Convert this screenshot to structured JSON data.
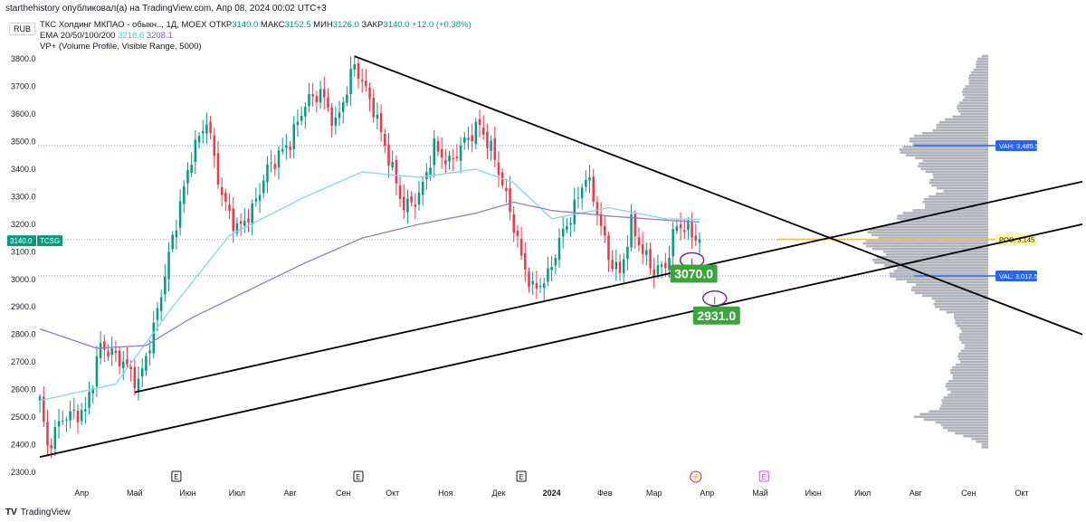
{
  "header": {
    "published_by": "starthehistory опубликовал(а) на TradingView.com, Апр 08, 2024 00:02 UTC+3",
    "currency": "RUB",
    "symbol_line": "ТКС Холдинг МКПАО - обыкн.., 1Д, MOEX",
    "otkr_label": "ОТКР",
    "otkr": "3140.0",
    "maks_label": "МАКС",
    "maks": "3152.5",
    "min_label": "МИН",
    "min": "3126.0",
    "zakr_label": "ЗАКР",
    "zakr": "3140.0",
    "change": "+12.0 (+0.38%)",
    "ema_label": "EMA 20/50/100/200",
    "ema_val1": "3218.6",
    "ema_val2": "3208.1",
    "vp_label": "VP+ (Volume Profile, Visible Range, 5000)"
  },
  "footer": {
    "brand": "TradingView",
    "logo_text": "TV"
  },
  "colors": {
    "up": "#089981",
    "down": "#f23645",
    "ema_fast": "#7fd6f5",
    "ema_slow": "#8e7cc3",
    "vp": "#9598a1",
    "vah": "#2962ff",
    "poc": "#f5d33d",
    "green_label": "#3da33d",
    "ellipse": "#7b2d8e"
  },
  "chart_data": {
    "type": "candlestick",
    "title": "ТКС Холдинг МКПАО - обыкн.., 1Д, MOEX",
    "ylim": [
      2280,
      3850
    ],
    "y_ticks": [
      "2300.0",
      "2400.0",
      "2500.0",
      "2600.0",
      "2700.0",
      "2800.0",
      "2900.0",
      "3000.0",
      "3100.0",
      "3200.0",
      "3300.0",
      "3400.0",
      "3500.0",
      "3600.0",
      "3700.0",
      "3800.0"
    ],
    "x_ticks": [
      "Апр",
      "Май",
      "Июн",
      "Июл",
      "Авг",
      "Сен",
      "Окт",
      "Ноя",
      "Дек",
      "2024",
      "Фев",
      "Мар",
      "Апр",
      "Май",
      "Июн",
      "Июл",
      "Авг",
      "Сен",
      "Окт"
    ],
    "x_tick_index": [
      11,
      25,
      39,
      52,
      66,
      80,
      93,
      107,
      121,
      135,
      149,
      162,
      176,
      190,
      204,
      217,
      231,
      245,
      259
    ],
    "event_markers": [
      {
        "label": "E",
        "index": 36
      },
      {
        "label": "E",
        "index": 84
      },
      {
        "label": "E",
        "index": 127
      },
      {
        "label": "⚡",
        "index": 173
      },
      {
        "label": "E",
        "index": 191
      }
    ],
    "price_tags": [
      {
        "label": "3140.0",
        "value": 3140,
        "side": "left"
      },
      {
        "label": "TCSG",
        "value": 3140,
        "side": "left"
      }
    ],
    "vp_labels": [
      {
        "label": "VAH: 3,485.5",
        "value": 3485.5
      },
      {
        "label": "POC: 3,145",
        "value": 3145
      },
      {
        "label": "VAL: 3,012.5",
        "value": 3012.5
      }
    ],
    "annotations": [
      {
        "label": "3070.0",
        "value": 3070,
        "index": 172
      },
      {
        "label": "2931.0",
        "value": 2931,
        "index": 178
      }
    ],
    "trendlines": [
      {
        "name": "upper-resistance",
        "from": {
          "index": 83,
          "value": 3810
        },
        "to": {
          "index": 275,
          "value": 2800
        }
      },
      {
        "name": "upper-support",
        "from": {
          "index": 25,
          "value": 2590
        },
        "to": {
          "index": 275,
          "value": 3355
        }
      },
      {
        "name": "lower-support",
        "from": {
          "index": 0,
          "value": 2355
        },
        "to": {
          "index": 275,
          "value": 3200
        }
      }
    ],
    "key_levels": [
      {
        "index": 0,
        "value": 2560
      },
      {
        "index": 2,
        "value": 2390
      },
      {
        "index": 6,
        "value": 2500
      },
      {
        "index": 12,
        "value": 2520
      },
      {
        "index": 16,
        "value": 2760
      },
      {
        "index": 22,
        "value": 2700
      },
      {
        "index": 26,
        "value": 2620
      },
      {
        "index": 30,
        "value": 2820
      },
      {
        "index": 35,
        "value": 3150
      },
      {
        "index": 40,
        "value": 3450
      },
      {
        "index": 44,
        "value": 3580
      },
      {
        "index": 48,
        "value": 3300
      },
      {
        "index": 52,
        "value": 3180
      },
      {
        "index": 56,
        "value": 3250
      },
      {
        "index": 60,
        "value": 3400
      },
      {
        "index": 66,
        "value": 3500
      },
      {
        "index": 70,
        "value": 3640
      },
      {
        "index": 74,
        "value": 3680
      },
      {
        "index": 78,
        "value": 3560
      },
      {
        "index": 83,
        "value": 3780
      },
      {
        "index": 88,
        "value": 3620
      },
      {
        "index": 92,
        "value": 3440
      },
      {
        "index": 96,
        "value": 3260
      },
      {
        "index": 100,
        "value": 3300
      },
      {
        "index": 104,
        "value": 3480
      },
      {
        "index": 108,
        "value": 3420
      },
      {
        "index": 112,
        "value": 3500
      },
      {
        "index": 116,
        "value": 3560
      },
      {
        "index": 120,
        "value": 3440
      },
      {
        "index": 124,
        "value": 3250
      },
      {
        "index": 127,
        "value": 3080
      },
      {
        "index": 130,
        "value": 2960
      },
      {
        "index": 134,
        "value": 3010
      },
      {
        "index": 137,
        "value": 3140
      },
      {
        "index": 141,
        "value": 3260
      },
      {
        "index": 144,
        "value": 3380
      },
      {
        "index": 147,
        "value": 3250
      },
      {
        "index": 150,
        "value": 3080
      },
      {
        "index": 153,
        "value": 3020
      },
      {
        "index": 156,
        "value": 3200
      },
      {
        "index": 159,
        "value": 3100
      },
      {
        "index": 162,
        "value": 3030
      },
      {
        "index": 165,
        "value": 3050
      },
      {
        "index": 168,
        "value": 3200
      },
      {
        "index": 171,
        "value": 3180
      },
      {
        "index": 174,
        "value": 3140
      }
    ],
    "ema_fast_key": [
      {
        "index": 0,
        "value": 2560
      },
      {
        "index": 20,
        "value": 2620
      },
      {
        "index": 35,
        "value": 2900
      },
      {
        "index": 50,
        "value": 3160
      },
      {
        "index": 70,
        "value": 3300
      },
      {
        "index": 85,
        "value": 3390
      },
      {
        "index": 100,
        "value": 3370
      },
      {
        "index": 115,
        "value": 3400
      },
      {
        "index": 125,
        "value": 3350
      },
      {
        "index": 135,
        "value": 3220
      },
      {
        "index": 150,
        "value": 3260
      },
      {
        "index": 165,
        "value": 3220
      },
      {
        "index": 174,
        "value": 3218
      }
    ],
    "ema_slow_key": [
      {
        "index": 0,
        "value": 2820
      },
      {
        "index": 15,
        "value": 2750
      },
      {
        "index": 28,
        "value": 2760
      },
      {
        "index": 40,
        "value": 2860
      },
      {
        "index": 55,
        "value": 2960
      },
      {
        "index": 70,
        "value": 3060
      },
      {
        "index": 85,
        "value": 3150
      },
      {
        "index": 100,
        "value": 3200
      },
      {
        "index": 115,
        "value": 3240
      },
      {
        "index": 125,
        "value": 3280
      },
      {
        "index": 135,
        "value": 3250
      },
      {
        "index": 150,
        "value": 3230
      },
      {
        "index": 165,
        "value": 3215
      },
      {
        "index": 174,
        "value": 3208
      }
    ],
    "volume_profile_key": [
      {
        "price": 2400,
        "vol": 0.05
      },
      {
        "price": 2500,
        "vol": 0.55
      },
      {
        "price": 2550,
        "vol": 0.35
      },
      {
        "price": 2650,
        "vol": 0.3
      },
      {
        "price": 2750,
        "vol": 0.2
      },
      {
        "price": 2850,
        "vol": 0.25
      },
      {
        "price": 2920,
        "vol": 0.45
      },
      {
        "price": 3000,
        "vol": 0.7
      },
      {
        "price": 3060,
        "vol": 0.85
      },
      {
        "price": 3120,
        "vol": 0.9
      },
      {
        "price": 3145,
        "vol": 1.0
      },
      {
        "price": 3200,
        "vol": 0.8
      },
      {
        "price": 3260,
        "vol": 0.55
      },
      {
        "price": 3320,
        "vol": 0.4
      },
      {
        "price": 3400,
        "vol": 0.5
      },
      {
        "price": 3480,
        "vol": 0.7
      },
      {
        "price": 3520,
        "vol": 0.55
      },
      {
        "price": 3600,
        "vol": 0.25
      },
      {
        "price": 3700,
        "vol": 0.18
      },
      {
        "price": 3800,
        "vol": 0.08
      }
    ]
  }
}
